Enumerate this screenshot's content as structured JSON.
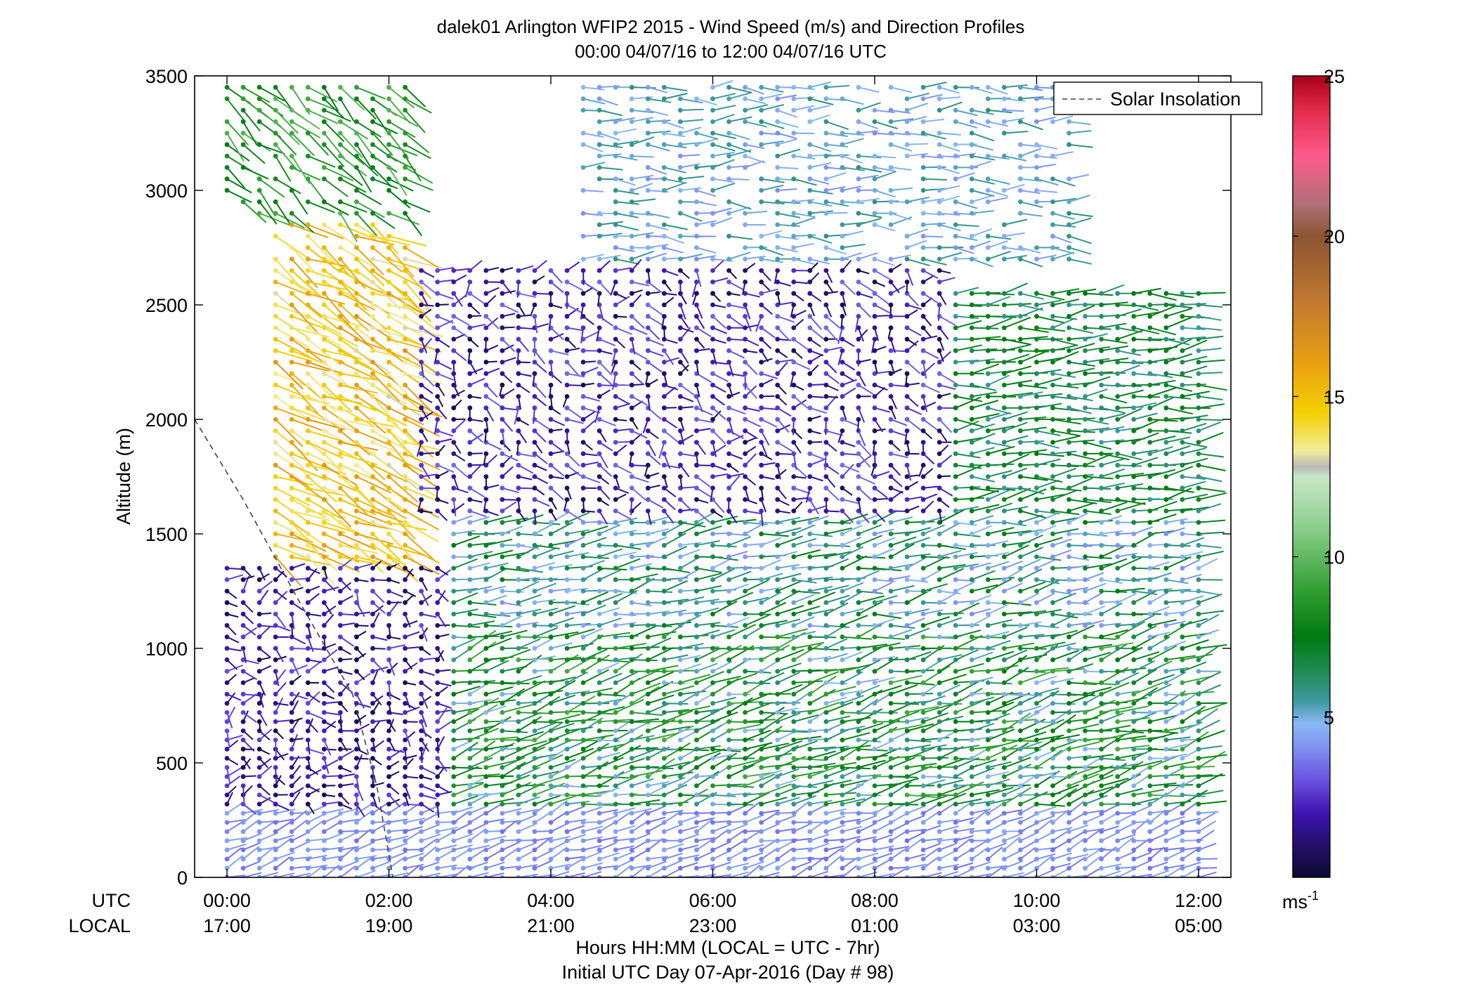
{
  "chart_data": {
    "type": "wind-barb-profile",
    "title": "dalek01 Arlington WFIP2 2015 - Wind Speed (m/s) and Direction Profiles",
    "subtitle": "00:00 04/07/16 to 12:00 04/07/16  UTC",
    "ylabel": "Altitude (m)",
    "xlabel": "Hours HH:MM  (LOCAL = UTC - 7hr)",
    "xlabel2": "Initial UTC Day 07-Apr-2016 (Day # 98)",
    "x_row_utc_label": "UTC",
    "x_row_local_label": "LOCAL",
    "ylim": [
      0,
      3500
    ],
    "xlim_hours": [
      -0.4,
      12.4
    ],
    "y_ticks": [
      0,
      500,
      1000,
      1500,
      2000,
      2500,
      3000,
      3500
    ],
    "y_tick_labels": [
      "0",
      "500",
      "1000",
      "1500",
      "2000",
      "2500",
      "3000",
      "3500"
    ],
    "x_ticks_hours": [
      0,
      2,
      4,
      6,
      8,
      10,
      12
    ],
    "x_ticks_utc": [
      "00:00",
      "02:00",
      "04:00",
      "06:00",
      "08:00",
      "10:00",
      "12:00"
    ],
    "x_ticks_local": [
      "17:00",
      "19:00",
      "21:00",
      "23:00",
      "01:00",
      "03:00",
      "05:00"
    ],
    "legend": {
      "entries": [
        "Solar Insolation"
      ],
      "placement": "top-right"
    },
    "colorbar": {
      "range": [
        0,
        25
      ],
      "ticks": [
        5,
        10,
        15,
        20,
        25
      ],
      "tick_labels": [
        "5",
        "10",
        "15",
        "20",
        "25"
      ],
      "unit_label": "ms",
      "unit_exponent": "-1",
      "colors": [
        {
          "v": 0,
          "c": "#0b0830"
        },
        {
          "v": 1,
          "c": "#24106a"
        },
        {
          "v": 2,
          "c": "#3d14b0"
        },
        {
          "v": 3,
          "c": "#6a4fe0"
        },
        {
          "v": 4,
          "c": "#7d8ff0"
        },
        {
          "v": 4.8,
          "c": "#8ab8f4"
        },
        {
          "v": 5.5,
          "c": "#3f9aa0"
        },
        {
          "v": 6.5,
          "c": "#1e8a4e"
        },
        {
          "v": 7.5,
          "c": "#007a10"
        },
        {
          "v": 9,
          "c": "#33a033"
        },
        {
          "v": 11,
          "c": "#8fd08f"
        },
        {
          "v": 12.5,
          "c": "#c8e8c8"
        },
        {
          "v": 12.8,
          "c": "#b8b8b8"
        },
        {
          "v": 13.3,
          "c": "#f2ec9a"
        },
        {
          "v": 14.5,
          "c": "#f4d000"
        },
        {
          "v": 16,
          "c": "#eaa010"
        },
        {
          "v": 18,
          "c": "#c07830"
        },
        {
          "v": 20,
          "c": "#8c5432"
        },
        {
          "v": 21,
          "c": "#b07078"
        },
        {
          "v": 22.5,
          "c": "#ff5a8a"
        },
        {
          "v": 24,
          "c": "#e02848"
        },
        {
          "v": 25,
          "c": "#a80018"
        }
      ]
    },
    "solar_insolation": {
      "style": "dashed",
      "points": [
        [
          -0.4,
          2000
        ],
        [
          0.2,
          1650
        ],
        [
          0.9,
          1200
        ],
        [
          1.55,
          800
        ],
        [
          1.85,
          400
        ],
        [
          2.05,
          0
        ]
      ]
    },
    "barb_grid": {
      "time_step_hours": 0.2,
      "altitude_levels_m": [
        0,
        40,
        80,
        120,
        160,
        200,
        240,
        280,
        320,
        360,
        400,
        440,
        480,
        520,
        560,
        600,
        640,
        680,
        720,
        760,
        800,
        850,
        900,
        950,
        1000,
        1050,
        1100,
        1150,
        1200,
        1250,
        1300,
        1350,
        1400,
        1450,
        1500,
        1550,
        1600,
        1650,
        1700,
        1750,
        1800,
        1850,
        1900,
        1950,
        2000,
        2050,
        2100,
        2150,
        2200,
        2250,
        2300,
        2350,
        2400,
        2450,
        2500,
        2550,
        2600,
        2650,
        2700,
        2750,
        2800,
        2850,
        2900,
        2950,
        3000,
        3050,
        3100,
        3150,
        3200,
        3250,
        3300,
        3350,
        3400,
        3450,
        3500
      ]
    },
    "regimes": [
      {
        "h0": 0,
        "h1": 12.4,
        "a0": 0,
        "a1": 320,
        "speed": [
          3.5,
          4.5
        ],
        "dir_deg": 250
      },
      {
        "h0": 0,
        "h1": 2.8,
        "a0": 320,
        "a1": 1400,
        "speed": [
          0.5,
          3
        ],
        "dir_deg": 280
      },
      {
        "h0": 2.8,
        "h1": 12.4,
        "a0": 320,
        "a1": 1100,
        "speed": [
          4.5,
          9.5
        ],
        "dir_deg": 255
      },
      {
        "h0": 2.8,
        "h1": 12.4,
        "a0": 1100,
        "a1": 1600,
        "speed": [
          4,
          7.5
        ],
        "dir_deg": 260
      },
      {
        "h0": 2.0,
        "h1": 9,
        "a0": 1600,
        "a1": 2700,
        "speed": [
          0.5,
          3.5
        ],
        "dir_deg": 300
      },
      {
        "h0": 9,
        "h1": 12.4,
        "a0": 1600,
        "a1": 2600,
        "speed": [
          5.5,
          8
        ],
        "dir_deg": 265
      },
      {
        "h0": 0.5,
        "h1": 2.2,
        "a0": 1400,
        "a1": 2900,
        "speed": [
          13,
          16.5
        ],
        "dir_deg": 300
      },
      {
        "h0": 0,
        "h1": 2.2,
        "a0": 2900,
        "a1": 3500,
        "speed": [
          7,
          10
        ],
        "dir_deg": 310
      },
      {
        "h0": 4.4,
        "h1": 10.5,
        "a0": 2700,
        "a1": 3500,
        "speed": [
          4,
          6
        ],
        "dir_deg": 270
      }
    ]
  }
}
